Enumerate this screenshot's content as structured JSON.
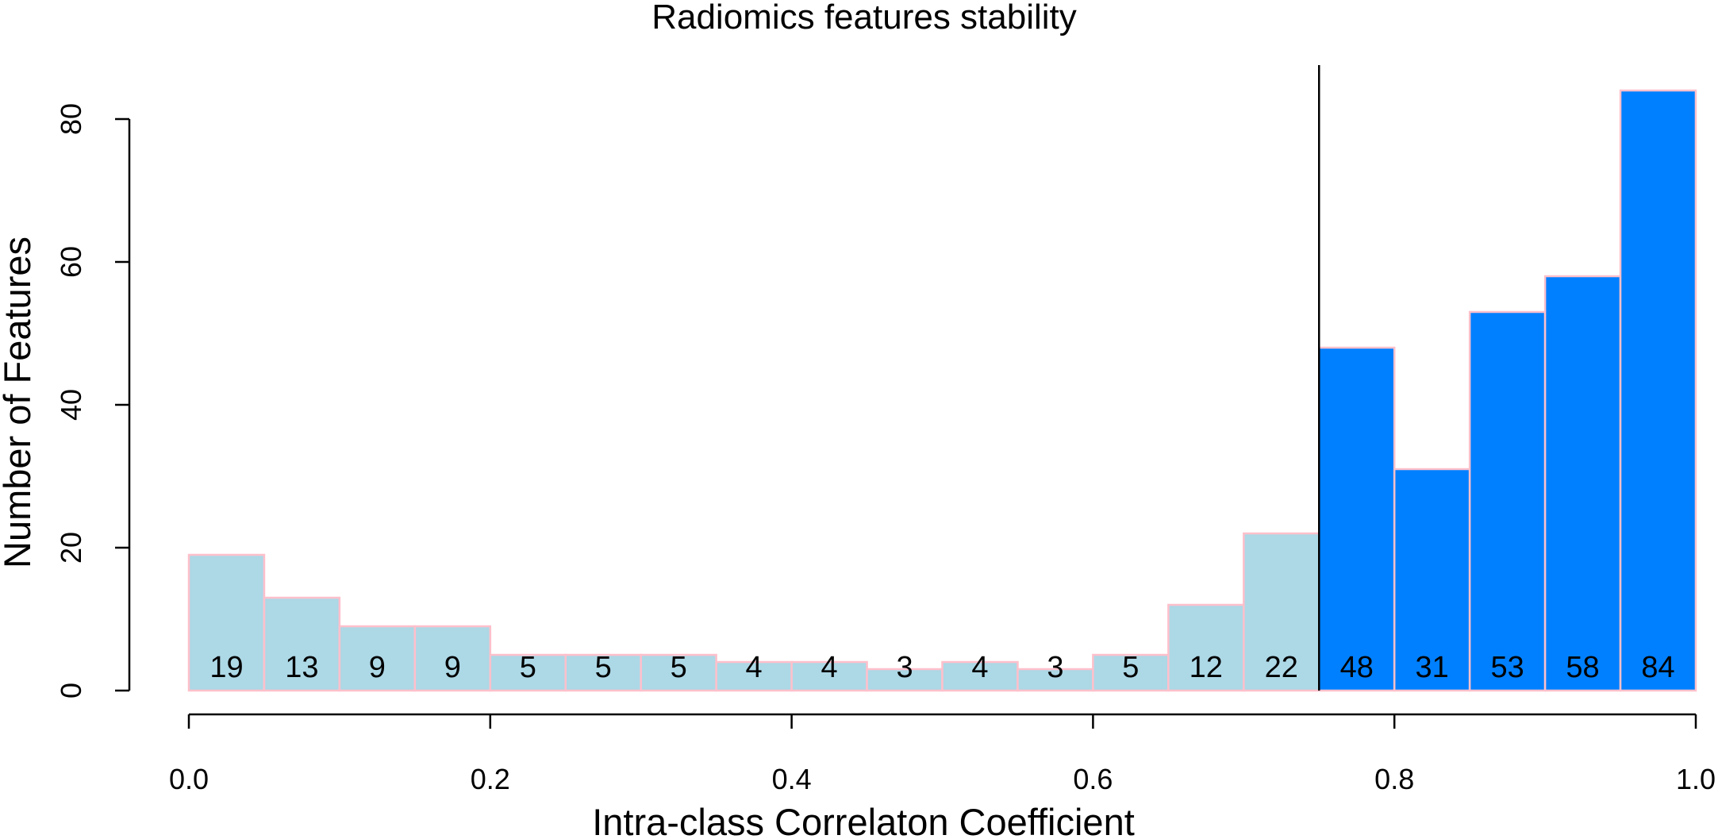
{
  "chart_data": {
    "type": "bar",
    "title": "Radiomics features stability",
    "xlabel": "Intra-class Correlaton Coefficient",
    "ylabel": "Number of Features",
    "bin_edges": [
      0.0,
      0.05,
      0.1,
      0.15,
      0.2,
      0.25,
      0.3,
      0.35,
      0.4,
      0.45,
      0.5,
      0.55,
      0.6,
      0.65,
      0.7,
      0.75,
      0.8,
      0.85,
      0.9,
      0.95,
      1.0
    ],
    "values": [
      19,
      13,
      9,
      9,
      5,
      5,
      5,
      4,
      4,
      3,
      4,
      3,
      5,
      12,
      22,
      48,
      31,
      53,
      58,
      84
    ],
    "bar_labels": [
      "19",
      "13",
      "9",
      "9",
      "5",
      "5",
      "5",
      "4",
      "4",
      "3",
      "4",
      "3",
      "5",
      "12",
      "22",
      "48",
      "31",
      "53",
      "58",
      "84"
    ],
    "threshold": 0.75,
    "xlim": [
      0.0,
      1.0
    ],
    "ylim": [
      0,
      84
    ],
    "x_ticks": [
      "0.0",
      "0.2",
      "0.4",
      "0.6",
      "0.8",
      "1.0"
    ],
    "x_tick_values": [
      0.0,
      0.2,
      0.4,
      0.6,
      0.8,
      1.0
    ],
    "y_ticks": [
      "0",
      "20",
      "40",
      "60",
      "80"
    ],
    "y_tick_values": [
      0,
      20,
      40,
      60,
      80
    ],
    "colors": {
      "below_threshold": "#add8e6",
      "above_threshold": "#0080ff",
      "bar_border": "#ffc0cb",
      "threshold_line": "#000000"
    },
    "grid": false,
    "legend": "none"
  }
}
